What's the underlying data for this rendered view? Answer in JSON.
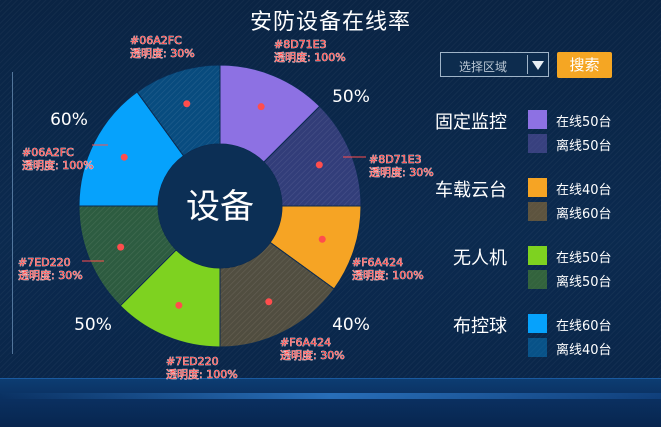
{
  "title": "安防设备在线率",
  "center_label": "设备",
  "controls": {
    "select_placeholder": "选择区域",
    "search_label": "搜索"
  },
  "pct_labels": [
    "50%",
    "40%",
    "50%",
    "60%"
  ],
  "colors": {
    "purple": "#8D71E3",
    "orange": "#F6A424",
    "green": "#7ED220",
    "blue": "#06A2FC",
    "annotation": "#ff4d4d"
  },
  "chart_data": {
    "type": "pie",
    "title": "安防设备在线率",
    "center_label": "设备",
    "series": [
      {
        "category": "固定监控",
        "online_label": "在线50台",
        "offline_label": "离线50台",
        "online": 50,
        "offline": 50,
        "color": "#8D71E3"
      },
      {
        "category": "车载云台",
        "online_label": "在线40台",
        "offline_label": "离线60台",
        "online": 40,
        "offline": 60,
        "color": "#F6A424"
      },
      {
        "category": "无人机",
        "online_label": "在线50台",
        "offline_label": "离线50台",
        "online": 50,
        "offline": 50,
        "color": "#7ED220"
      },
      {
        "category": "布控球",
        "online_label": "在线60台",
        "offline_label": "离线40台",
        "online": 60,
        "offline": 40,
        "color": "#06A2FC"
      }
    ]
  },
  "annotations": [
    {
      "code": "#8D71E3",
      "opacity_label": "透明度: 100%"
    },
    {
      "code": "#8D71E3",
      "opacity_label": "透明度: 30%"
    },
    {
      "code": "#F6A424",
      "opacity_label": "透明度: 100%"
    },
    {
      "code": "#F6A424",
      "opacity_label": "透明度: 30%"
    },
    {
      "code": "#7ED220",
      "opacity_label": "透明度: 100%"
    },
    {
      "code": "#7ED220",
      "opacity_label": "透明度: 30%"
    },
    {
      "code": "#06A2FC",
      "opacity_label": "透明度: 100%"
    },
    {
      "code": "#06A2FC",
      "opacity_label": "透明度: 30%"
    }
  ]
}
